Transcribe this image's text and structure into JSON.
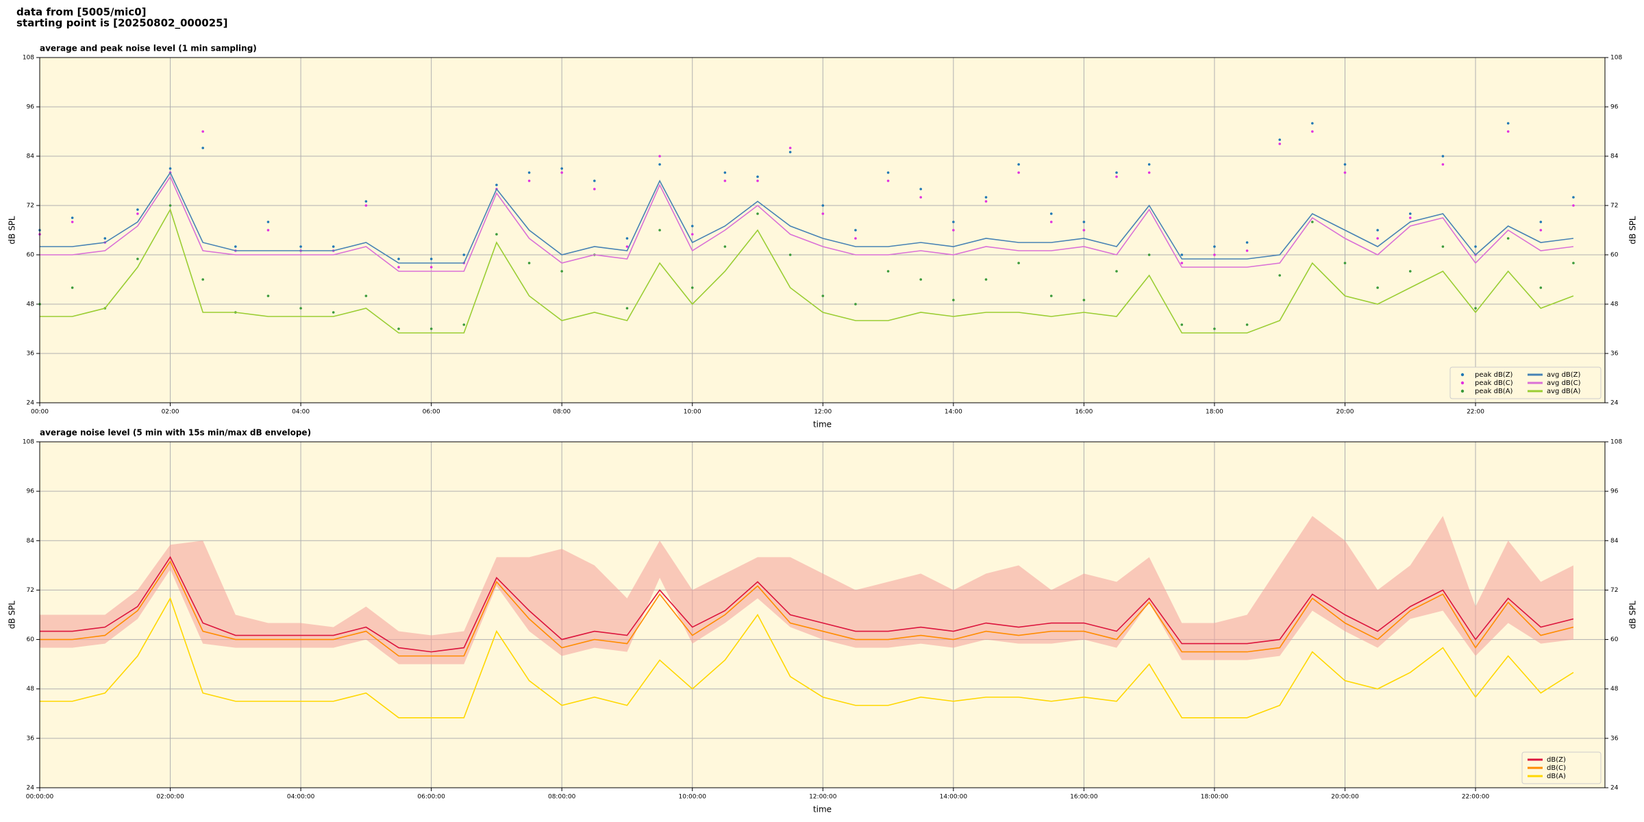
{
  "header": {
    "line1": "data from [5005/mic0]",
    "line2": "starting point is [20250802_000025]"
  },
  "chart_data": [
    {
      "type": "line",
      "title": "average and peak noise level (1 min sampling)",
      "xlabel": "time",
      "ylabel": "dB SPL",
      "x": [
        "00:00",
        "00:30",
        "01:00",
        "01:30",
        "02:00",
        "02:30",
        "03:00",
        "03:30",
        "04:00",
        "04:30",
        "05:00",
        "05:30",
        "06:00",
        "06:30",
        "07:00",
        "07:30",
        "08:00",
        "08:30",
        "09:00",
        "09:30",
        "10:00",
        "10:30",
        "11:00",
        "11:30",
        "12:00",
        "12:30",
        "13:00",
        "13:30",
        "14:00",
        "14:30",
        "15:00",
        "15:30",
        "16:00",
        "16:30",
        "17:00",
        "17:30",
        "18:00",
        "18:30",
        "19:00",
        "19:30",
        "20:00",
        "20:30",
        "21:00",
        "21:30",
        "22:00",
        "22:30",
        "23:00",
        "23:30"
      ],
      "xlim": [
        "00:00",
        "23:59"
      ],
      "xticks": [
        "00:00",
        "02:00",
        "04:00",
        "06:00",
        "08:00",
        "10:00",
        "12:00",
        "14:00",
        "16:00",
        "18:00",
        "20:00",
        "22:00"
      ],
      "ylim": [
        24,
        108
      ],
      "yticks": [
        24,
        36,
        48,
        60,
        72,
        84,
        96,
        108
      ],
      "grid": true,
      "legend": "lower right",
      "legend_columns": 2,
      "series": [
        {
          "name": "peak dB(Z)",
          "kind": "scatter",
          "color": "#1f77b4",
          "values": [
            66,
            69,
            64,
            71,
            81,
            86,
            62,
            68,
            62,
            62,
            73,
            59,
            59,
            60,
            77,
            80,
            81,
            78,
            64,
            82,
            67,
            80,
            79,
            85,
            72,
            66,
            80,
            76,
            68,
            74,
            82,
            70,
            68,
            80,
            82,
            60,
            62,
            63,
            88,
            92,
            82,
            66,
            70,
            84,
            62,
            92,
            68,
            74
          ]
        },
        {
          "name": "peak dB(C)",
          "kind": "scatter",
          "color": "#e030e0",
          "values": [
            65,
            68,
            63,
            70,
            80,
            90,
            61,
            66,
            61,
            61,
            72,
            57,
            57,
            58,
            76,
            78,
            80,
            76,
            62,
            84,
            65,
            78,
            78,
            86,
            70,
            64,
            78,
            74,
            66,
            73,
            80,
            68,
            66,
            79,
            80,
            58,
            60,
            61,
            87,
            90,
            80,
            64,
            69,
            82,
            60,
            90,
            66,
            72
          ]
        },
        {
          "name": "peak dB(A)",
          "kind": "scatter",
          "color": "#3a9a3a",
          "values": [
            48,
            52,
            47,
            59,
            72,
            54,
            46,
            50,
            47,
            46,
            50,
            42,
            42,
            43,
            65,
            58,
            56,
            60,
            47,
            66,
            52,
            62,
            70,
            60,
            50,
            48,
            56,
            54,
            49,
            54,
            58,
            50,
            49,
            56,
            60,
            43,
            42,
            43,
            55,
            68,
            58,
            52,
            56,
            62,
            47,
            64,
            52,
            58
          ]
        },
        {
          "name": "avg dB(Z)",
          "kind": "line",
          "color": "#4682b4",
          "values": [
            62,
            62,
            63,
            68,
            80,
            63,
            61,
            61,
            61,
            61,
            63,
            58,
            58,
            58,
            76,
            66,
            60,
            62,
            61,
            78,
            63,
            67,
            73,
            67,
            64,
            62,
            62,
            63,
            62,
            64,
            63,
            63,
            64,
            62,
            72,
            59,
            59,
            59,
            60,
            70,
            66,
            62,
            68,
            70,
            60,
            67,
            63,
            64
          ]
        },
        {
          "name": "avg dB(C)",
          "kind": "line",
          "color": "#da70d6",
          "values": [
            60,
            60,
            61,
            67,
            79,
            61,
            60,
            60,
            60,
            60,
            62,
            56,
            56,
            56,
            75,
            64,
            58,
            60,
            59,
            77,
            61,
            66,
            72,
            65,
            62,
            60,
            60,
            61,
            60,
            62,
            61,
            61,
            62,
            60,
            71,
            57,
            57,
            57,
            58,
            69,
            64,
            60,
            67,
            69,
            58,
            66,
            61,
            62
          ]
        },
        {
          "name": "avg dB(A)",
          "kind": "line",
          "color": "#9acd32",
          "values": [
            45,
            45,
            47,
            57,
            71,
            46,
            46,
            45,
            45,
            45,
            47,
            41,
            41,
            41,
            63,
            50,
            44,
            46,
            44,
            58,
            48,
            56,
            66,
            52,
            46,
            44,
            44,
            46,
            45,
            46,
            46,
            45,
            46,
            45,
            55,
            41,
            41,
            41,
            44,
            58,
            50,
            48,
            52,
            56,
            46,
            56,
            47,
            50
          ]
        }
      ]
    },
    {
      "type": "line",
      "title": "average noise level (5 min with 15s min/max dB envelope)",
      "xlabel": "time",
      "ylabel": "dB SPL",
      "x": [
        "00:00:00",
        "00:30:00",
        "01:00:00",
        "01:30:00",
        "02:00:00",
        "02:30:00",
        "03:00:00",
        "03:30:00",
        "04:00:00",
        "04:30:00",
        "05:00:00",
        "05:30:00",
        "06:00:00",
        "06:30:00",
        "07:00:00",
        "07:30:00",
        "08:00:00",
        "08:30:00",
        "09:00:00",
        "09:30:00",
        "10:00:00",
        "10:30:00",
        "11:00:00",
        "11:30:00",
        "12:00:00",
        "12:30:00",
        "13:00:00",
        "13:30:00",
        "14:00:00",
        "14:30:00",
        "15:00:00",
        "15:30:00",
        "16:00:00",
        "16:30:00",
        "17:00:00",
        "17:30:00",
        "18:00:00",
        "18:30:00",
        "19:00:00",
        "19:30:00",
        "20:00:00",
        "20:30:00",
        "21:00:00",
        "21:30:00",
        "22:00:00",
        "22:30:00",
        "23:00:00",
        "23:30:00"
      ],
      "xlim": [
        "00:00:00",
        "23:59:00"
      ],
      "xticks": [
        "00:00:00",
        "02:00:00",
        "04:00:00",
        "06:00:00",
        "08:00:00",
        "10:00:00",
        "12:00:00",
        "14:00:00",
        "16:00:00",
        "18:00:00",
        "20:00:00",
        "22:00:00"
      ],
      "ylim": [
        24,
        108
      ],
      "yticks": [
        24,
        36,
        48,
        60,
        72,
        84,
        96,
        108
      ],
      "grid": true,
      "legend": "lower right",
      "legend_columns": 1,
      "envelope": {
        "color": "#f4a09a",
        "upper": [
          66,
          66,
          66,
          72,
          83,
          84,
          66,
          64,
          64,
          63,
          68,
          62,
          61,
          62,
          80,
          80,
          82,
          78,
          70,
          84,
          72,
          76,
          80,
          80,
          76,
          72,
          74,
          76,
          72,
          76,
          78,
          72,
          76,
          74,
          80,
          64,
          64,
          66,
          78,
          90,
          84,
          72,
          78,
          90,
          68,
          84,
          74,
          78
        ],
        "lower": [
          58,
          58,
          59,
          65,
          77,
          59,
          58,
          58,
          58,
          58,
          60,
          54,
          54,
          54,
          73,
          62,
          56,
          58,
          57,
          75,
          59,
          64,
          70,
          63,
          60,
          58,
          58,
          59,
          58,
          60,
          59,
          59,
          60,
          58,
          69,
          55,
          55,
          55,
          56,
          67,
          62,
          58,
          65,
          67,
          56,
          64,
          59,
          60
        ]
      },
      "series": [
        {
          "name": "dB(Z)",
          "kind": "line",
          "color": "#dc143c",
          "values": [
            62,
            62,
            63,
            68,
            80,
            64,
            61,
            61,
            61,
            61,
            63,
            58,
            57,
            58,
            75,
            67,
            60,
            62,
            61,
            72,
            63,
            67,
            74,
            66,
            64,
            62,
            62,
            63,
            62,
            64,
            63,
            64,
            64,
            62,
            70,
            59,
            59,
            59,
            60,
            71,
            66,
            62,
            68,
            72,
            60,
            70,
            63,
            65
          ]
        },
        {
          "name": "dB(C)",
          "kind": "line",
          "color": "#ff8c00",
          "values": [
            60,
            60,
            61,
            67,
            79,
            62,
            60,
            60,
            60,
            60,
            62,
            56,
            56,
            56,
            74,
            65,
            58,
            60,
            59,
            71,
            61,
            66,
            73,
            64,
            62,
            60,
            60,
            61,
            60,
            62,
            61,
            62,
            62,
            60,
            69,
            57,
            57,
            57,
            58,
            70,
            64,
            60,
            67,
            71,
            58,
            69,
            61,
            63
          ]
        },
        {
          "name": "dB(A)",
          "kind": "line",
          "color": "#ffd700",
          "values": [
            45,
            45,
            47,
            56,
            70,
            47,
            45,
            45,
            45,
            45,
            47,
            41,
            41,
            41,
            62,
            50,
            44,
            46,
            44,
            55,
            48,
            55,
            66,
            51,
            46,
            44,
            44,
            46,
            45,
            46,
            46,
            45,
            46,
            45,
            54,
            41,
            41,
            41,
            44,
            57,
            50,
            48,
            52,
            58,
            46,
            56,
            47,
            52
          ]
        }
      ]
    }
  ]
}
